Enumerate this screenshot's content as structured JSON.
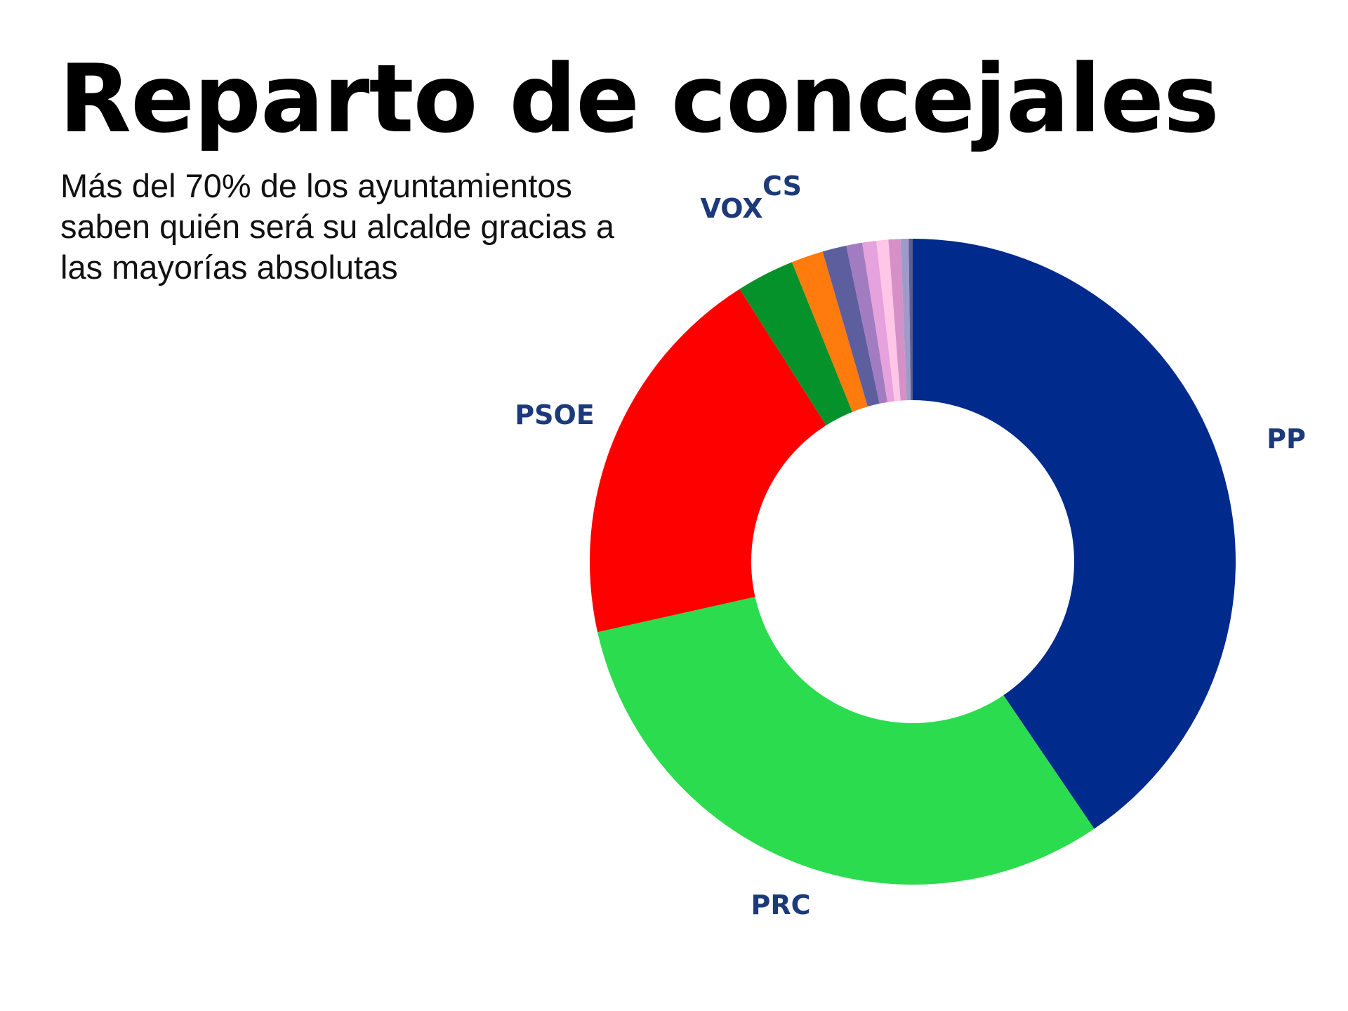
{
  "header": {
    "title": "Reparto de concejales",
    "subtitle": "Más del 70% de los ayuntamientos saben quién será su alcalde gracias a las mayorías absolutas"
  },
  "colors": {
    "label": "#1c3a7a"
  },
  "chart_data": {
    "type": "pie",
    "donut": true,
    "title": "Reparto de concejales",
    "subtitle": "Más del 70% de los ayuntamientos saben quién será su alcalde gracias a las mayorías absolutas",
    "legend": "none",
    "series": [
      {
        "name": "PP",
        "value": 40.5,
        "color": "#002a8c",
        "label": "PP"
      },
      {
        "name": "PRC",
        "value": 31.0,
        "color": "#2bdc4e",
        "label": "PRC"
      },
      {
        "name": "PSOE",
        "value": 19.5,
        "color": "#ff0000",
        "label": "PSOE"
      },
      {
        "name": "",
        "value": 2.9,
        "color": "#06922a",
        "label": ""
      },
      {
        "name": "CS",
        "value": 1.6,
        "color": "#ff7b0d",
        "label": "CS"
      },
      {
        "name": "VOX",
        "value": 1.2,
        "color": "#5c5e9e",
        "label": "VOX"
      },
      {
        "name": "",
        "value": 0.8,
        "color": "#a27cc0",
        "label": ""
      },
      {
        "name": "",
        "value": 0.7,
        "color": "#e6a2dc",
        "label": ""
      },
      {
        "name": "",
        "value": 0.6,
        "color": "#ffc6e8",
        "label": ""
      },
      {
        "name": "",
        "value": 0.6,
        "color": "#d590c8",
        "label": ""
      },
      {
        "name": "",
        "value": 0.4,
        "color": "#9f9bc8",
        "label": ""
      },
      {
        "name": "",
        "value": 0.2,
        "color": "#5a5e94",
        "label": ""
      }
    ]
  }
}
